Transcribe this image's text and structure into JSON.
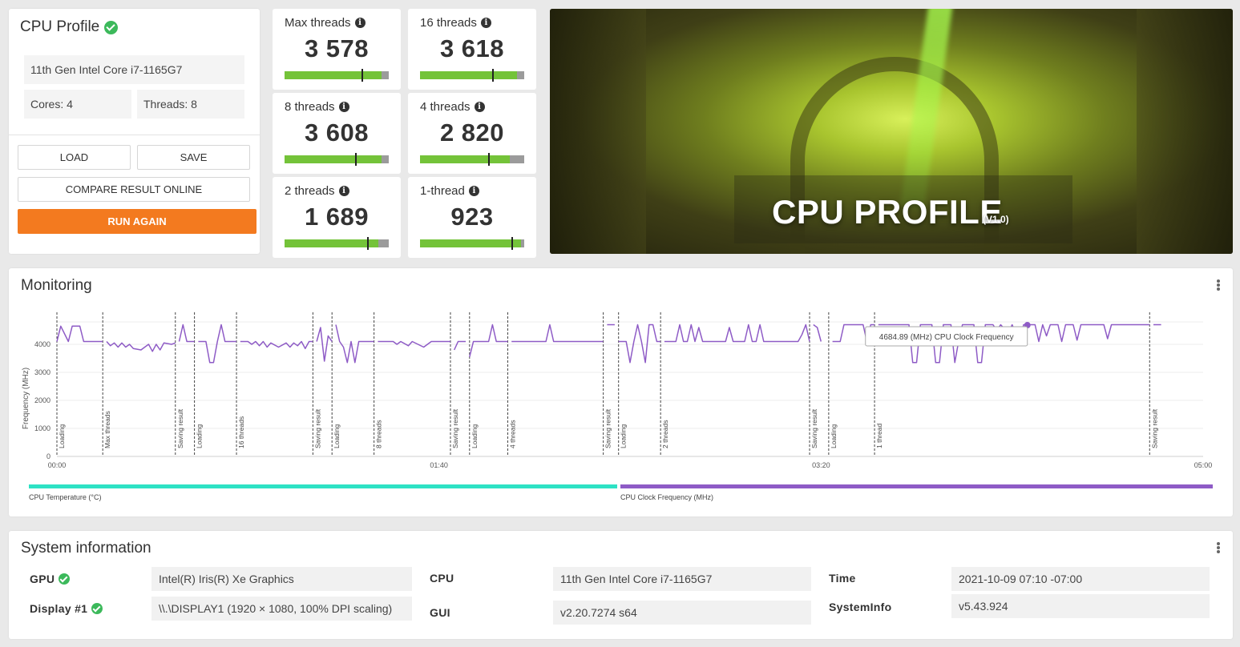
{
  "profile": {
    "title": "CPU Profile",
    "cpu_name": "11th Gen Intel Core i7-1165G7",
    "cores": "Cores: 4",
    "threads": "Threads: 8",
    "load_label": "LOAD",
    "save_label": "SAVE",
    "compare_label": "COMPARE RESULT ONLINE",
    "run_label": "RUN AGAIN"
  },
  "scores": [
    {
      "label": "Max threads",
      "value": "3 578",
      "fill": 0.93,
      "marker": 0.74
    },
    {
      "label": "16 threads",
      "value": "3 618",
      "fill": 0.93,
      "marker": 0.69
    },
    {
      "label": "8 threads",
      "value": "3 608",
      "fill": 0.93,
      "marker": 0.68
    },
    {
      "label": "4 threads",
      "value": "2 820",
      "fill": 0.86,
      "marker": 0.65
    },
    {
      "label": "2 threads",
      "value": "1 689",
      "fill": 0.9,
      "marker": 0.79
    },
    {
      "label": "1-thread",
      "value": "923",
      "fill": 0.97,
      "marker": 0.88
    }
  ],
  "hero": {
    "title": "CPU PROFILE",
    "version": "(V1.0)"
  },
  "monitoring": {
    "title": "Monitoring",
    "tooltip": "4684.89 (MHz) CPU Clock Frequency",
    "legend_temp": "CPU Temperature (°C)",
    "legend_freq": "CPU Clock Frequency (MHz)"
  },
  "chart_data": {
    "type": "line",
    "ylabel": "Frequency (MHz)",
    "ylim": [
      0,
      5000
    ],
    "yticks": [
      "0",
      "1000",
      "2000",
      "3000",
      "4000"
    ],
    "xlim": [
      0,
      300
    ],
    "xticks": [
      {
        "t": 0,
        "label": "00:00"
      },
      {
        "t": 100,
        "label": "01:40"
      },
      {
        "t": 200,
        "label": "03:20"
      },
      {
        "t": 300,
        "label": "05:00"
      }
    ],
    "markers": [
      {
        "t": 0,
        "label": "Loading"
      },
      {
        "t": 12,
        "label": "Max threads"
      },
      {
        "t": 31,
        "label": "Saving result"
      },
      {
        "t": 36,
        "label": "Loading"
      },
      {
        "t": 47,
        "label": "16 threads"
      },
      {
        "t": 67,
        "label": "Saving result"
      },
      {
        "t": 72,
        "label": "Loading"
      },
      {
        "t": 83,
        "label": "8 threads"
      },
      {
        "t": 103,
        "label": "Saving result"
      },
      {
        "t": 108,
        "label": "Loading"
      },
      {
        "t": 118,
        "label": "4 threads"
      },
      {
        "t": 143,
        "label": "Saving result"
      },
      {
        "t": 147,
        "label": "Loading"
      },
      {
        "t": 158,
        "label": "2 threads"
      },
      {
        "t": 197,
        "label": "Saving result"
      },
      {
        "t": 202,
        "label": "Loading"
      },
      {
        "t": 214,
        "label": "1 thread"
      },
      {
        "t": 286,
        "label": "Saving result"
      }
    ],
    "series": [
      {
        "name": "CPU Clock Frequency (MHz)",
        "color": "#8e5bc6",
        "segments": [
          [
            [
              0,
              4100
            ],
            [
              1,
              4650
            ],
            [
              3,
              4100
            ],
            [
              4,
              4650
            ],
            [
              6,
              4650
            ],
            [
              7,
              4100
            ],
            [
              12,
              4100
            ]
          ],
          [
            [
              13,
              4100
            ],
            [
              14,
              3950
            ],
            [
              15,
              4050
            ],
            [
              16,
              3900
            ],
            [
              17,
              4050
            ],
            [
              18,
              3900
            ],
            [
              19,
              4000
            ],
            [
              20,
              3850
            ],
            [
              22,
              3800
            ],
            [
              23,
              3900
            ],
            [
              24,
              4000
            ],
            [
              25,
              3750
            ],
            [
              26,
              4000
            ],
            [
              27,
              3800
            ],
            [
              28,
              4050
            ],
            [
              30,
              4000
            ],
            [
              31,
              4050
            ]
          ],
          [
            [
              32,
              4100
            ],
            [
              33,
              4700
            ],
            [
              34,
              4100
            ],
            [
              36,
              4100
            ]
          ],
          [
            [
              37,
              4100
            ],
            [
              39,
              4100
            ],
            [
              40,
              3350
            ],
            [
              41,
              3350
            ],
            [
              42,
              4100
            ],
            [
              43,
              4700
            ],
            [
              44,
              4100
            ],
            [
              47,
              4100
            ]
          ],
          [
            [
              48,
              4100
            ],
            [
              50,
              4100
            ],
            [
              51,
              4000
            ],
            [
              52,
              4100
            ],
            [
              53,
              3950
            ],
            [
              54,
              4100
            ],
            [
              55,
              3900
            ],
            [
              56,
              4050
            ],
            [
              58,
              3900
            ],
            [
              60,
              4050
            ],
            [
              61,
              3900
            ],
            [
              62,
              4050
            ],
            [
              63,
              3950
            ],
            [
              64,
              4100
            ],
            [
              65,
              3850
            ],
            [
              66,
              4100
            ],
            [
              67,
              4100
            ]
          ],
          [
            [
              68,
              4100
            ],
            [
              69,
              4600
            ],
            [
              70,
              3400
            ],
            [
              71,
              4300
            ],
            [
              72,
              4100
            ]
          ],
          [
            [
              73,
              4700
            ],
            [
              74,
              4100
            ],
            [
              75,
              3900
            ],
            [
              76,
              3350
            ],
            [
              77,
              4100
            ],
            [
              78,
              3350
            ],
            [
              79,
              4100
            ],
            [
              83,
              4100
            ]
          ],
          [
            [
              84,
              4100
            ],
            [
              88,
              4100
            ],
            [
              89,
              4000
            ],
            [
              90,
              4100
            ],
            [
              92,
              3950
            ],
            [
              93,
              4100
            ],
            [
              96,
              3900
            ],
            [
              98,
              4100
            ],
            [
              103,
              4100
            ]
          ],
          [
            [
              104,
              3800
            ],
            [
              105,
              4100
            ],
            [
              107,
              4100
            ]
          ],
          [
            [
              108,
              3550
            ],
            [
              109,
              4100
            ],
            [
              113,
              4100
            ],
            [
              114,
              4700
            ],
            [
              115,
              4100
            ],
            [
              118,
              4100
            ]
          ],
          [
            [
              119,
              4100
            ],
            [
              128,
              4100
            ],
            [
              129,
              4700
            ],
            [
              130,
              4100
            ],
            [
              143,
              4100
            ]
          ],
          [
            [
              144,
              4700
            ],
            [
              146,
              4700
            ]
          ],
          [
            [
              147,
              4100
            ],
            [
              149,
              4100
            ],
            [
              150,
              3350
            ],
            [
              151,
              4100
            ],
            [
              152,
              4700
            ],
            [
              153,
              4100
            ],
            [
              154,
              3350
            ],
            [
              155,
              4700
            ],
            [
              156,
              4700
            ],
            [
              157,
              4100
            ],
            [
              158,
              4100
            ]
          ],
          [
            [
              159,
              4100
            ],
            [
              162,
              4100
            ],
            [
              163,
              4700
            ],
            [
              164,
              4100
            ],
            [
              165,
              4100
            ],
            [
              166,
              4700
            ],
            [
              167,
              4100
            ],
            [
              168,
              4600
            ],
            [
              169,
              4100
            ],
            [
              175,
              4100
            ],
            [
              176,
              4600
            ],
            [
              177,
              4100
            ],
            [
              180,
              4100
            ],
            [
              181,
              4700
            ],
            [
              182,
              4100
            ],
            [
              183,
              4100
            ],
            [
              184,
              4700
            ],
            [
              185,
              4100
            ],
            [
              194,
              4100
            ],
            [
              195,
              4350
            ],
            [
              196,
              4700
            ],
            [
              197,
              4100
            ]
          ],
          [
            [
              198,
              4700
            ],
            [
              199,
              4600
            ],
            [
              200,
              4100
            ]
          ],
          [
            [
              203,
              4100
            ],
            [
              205,
              4100
            ],
            [
              206,
              4700
            ],
            [
              211,
              4700
            ],
            [
              212,
              4100
            ],
            [
              213,
              4700
            ],
            [
              214,
              4700
            ]
          ],
          [
            [
              215,
              4700
            ],
            [
              223,
              4700
            ],
            [
              224,
              3350
            ],
            [
              225,
              3350
            ],
            [
              226,
              4700
            ],
            [
              229,
              4700
            ],
            [
              230,
              3350
            ],
            [
              231,
              3350
            ],
            [
              232,
              4700
            ],
            [
              234,
              4700
            ],
            [
              235,
              3350
            ],
            [
              236,
              4100
            ],
            [
              237,
              4700
            ],
            [
              240,
              4700
            ],
            [
              241,
              3350
            ],
            [
              242,
              3350
            ],
            [
              243,
              4700
            ],
            [
              245,
              4700
            ],
            [
              246,
              4500
            ],
            [
              247,
              4700
            ],
            [
              249,
              4400
            ],
            [
              250,
              4700
            ],
            [
              252,
              4100
            ],
            [
              253,
              4700
            ],
            [
              256,
              4700
            ],
            [
              257,
              4100
            ],
            [
              258,
              4700
            ],
            [
              259,
              4300
            ],
            [
              260,
              4700
            ],
            [
              262,
              4700
            ],
            [
              263,
              4100
            ],
            [
              264,
              4700
            ],
            [
              266,
              4700
            ],
            [
              267,
              4150
            ],
            [
              268,
              4700
            ],
            [
              274,
              4700
            ],
            [
              275,
              4200
            ],
            [
              276,
              4700
            ],
            [
              286,
              4700
            ]
          ],
          [
            [
              287,
              4700
            ],
            [
              289,
              4700
            ]
          ]
        ]
      }
    ],
    "tooltip_point": {
      "t": 254,
      "v": 4684.89
    }
  },
  "sysinfo": {
    "title": "System information",
    "gpu_label": "GPU",
    "gpu_value": "Intel(R) Iris(R) Xe Graphics",
    "display_label": "Display #1",
    "display_value": "\\\\.\\DISPLAY1 (1920 × 1080, 100% DPI scaling)",
    "cpu_label": "CPU",
    "cpu_value": "11th Gen Intel Core i7-1165G7",
    "gui_label": "GUI",
    "gui_value": "v2.20.7274 s64",
    "time_label": "Time",
    "time_value": "2021-10-09 07:10 -07:00",
    "systeminfo_label": "SystemInfo",
    "systeminfo_value": "v5.43.924"
  },
  "colors": {
    "accent": "#f37a1f",
    "score_bar": "#74c339",
    "temp_legend": "#2de2c4",
    "freq_line": "#8e5bc6"
  }
}
